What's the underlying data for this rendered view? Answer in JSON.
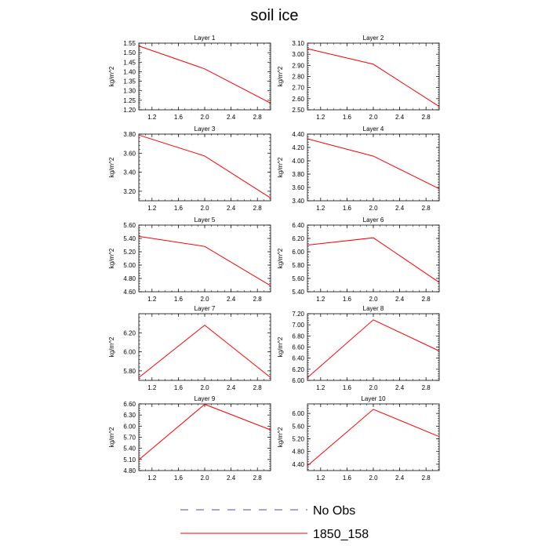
{
  "title": "soil ice",
  "legend": [
    {
      "label": "No Obs",
      "color": "#4b4bb4",
      "dash": true
    },
    {
      "label": "1850_158",
      "color": "#ff0000",
      "dash": false
    }
  ],
  "chart_data": [
    {
      "type": "line",
      "title": "Layer 1",
      "ylabel": "kg/m^2",
      "x": [
        1,
        2,
        3
      ],
      "xlim": [
        1,
        3
      ],
      "xticks": [
        "1.2",
        "1.6",
        "2.0",
        "2.4",
        "2.8"
      ],
      "ylim": [
        1.2,
        1.55
      ],
      "yticks": [
        "1.20",
        "1.25",
        "1.30",
        "1.35",
        "1.40",
        "1.45",
        "1.50",
        "1.55"
      ],
      "series": [
        {
          "name": "1850_158",
          "values": [
            1.535,
            1.415,
            1.235
          ]
        }
      ]
    },
    {
      "type": "line",
      "title": "Layer 2",
      "ylabel": "kg/m^2",
      "x": [
        1,
        2,
        3
      ],
      "xlim": [
        1,
        3
      ],
      "xticks": [
        "1.2",
        "1.6",
        "2.0",
        "2.4",
        "2.8"
      ],
      "ylim": [
        2.5,
        3.1
      ],
      "yticks": [
        "2.50",
        "2.60",
        "2.70",
        "2.80",
        "2.90",
        "3.00",
        "3.10"
      ],
      "series": [
        {
          "name": "1850_158",
          "values": [
            3.05,
            2.91,
            2.53
          ]
        }
      ]
    },
    {
      "type": "line",
      "title": "Layer 3",
      "ylabel": "kg/m^2",
      "x": [
        1,
        2,
        3
      ],
      "xlim": [
        1,
        3
      ],
      "xticks": [
        "1.2",
        "1.6",
        "2.0",
        "2.4",
        "2.8"
      ],
      "ylim": [
        3.1,
        3.8
      ],
      "yticks": [
        "3.20",
        "3.40",
        "3.60",
        "3.80"
      ],
      "series": [
        {
          "name": "1850_158",
          "values": [
            3.79,
            3.57,
            3.13
          ]
        }
      ]
    },
    {
      "type": "line",
      "title": "Layer 4",
      "ylabel": "kg/m^2",
      "x": [
        1,
        2,
        3
      ],
      "xlim": [
        1,
        3
      ],
      "xticks": [
        "1.2",
        "1.6",
        "2.0",
        "2.4",
        "2.8"
      ],
      "ylim": [
        3.4,
        4.4
      ],
      "yticks": [
        "3.40",
        "3.60",
        "3.80",
        "4.00",
        "4.20",
        "4.40"
      ],
      "series": [
        {
          "name": "1850_158",
          "values": [
            4.33,
            4.07,
            3.58
          ]
        }
      ]
    },
    {
      "type": "line",
      "title": "Layer 5",
      "ylabel": "kg/m^2",
      "x": [
        1,
        2,
        3
      ],
      "xlim": [
        1,
        3
      ],
      "xticks": [
        "1.2",
        "1.6",
        "2.0",
        "2.4",
        "2.8"
      ],
      "ylim": [
        4.6,
        5.6
      ],
      "yticks": [
        "4.60",
        "4.80",
        "5.00",
        "5.20",
        "5.40",
        "5.60"
      ],
      "series": [
        {
          "name": "1850_158",
          "values": [
            5.43,
            5.28,
            4.69
          ]
        }
      ]
    },
    {
      "type": "line",
      "title": "Layer 6",
      "ylabel": "kg/m^2",
      "x": [
        1,
        2,
        3
      ],
      "xlim": [
        1,
        3
      ],
      "xticks": [
        "1.2",
        "1.6",
        "2.0",
        "2.4",
        "2.8"
      ],
      "ylim": [
        5.4,
        6.4
      ],
      "yticks": [
        "5.40",
        "5.60",
        "5.80",
        "6.00",
        "6.20",
        "6.40"
      ],
      "series": [
        {
          "name": "1850_158",
          "values": [
            6.1,
            6.21,
            5.54
          ]
        }
      ]
    },
    {
      "type": "line",
      "title": "Layer 7",
      "ylabel": "kg/m^2",
      "x": [
        1,
        2,
        3
      ],
      "xlim": [
        1,
        3
      ],
      "xticks": [
        "1.2",
        "1.6",
        "2.0",
        "2.4",
        "2.8"
      ],
      "ylim": [
        5.7,
        6.4
      ],
      "yticks": [
        "5.80",
        "6.00",
        "6.20"
      ],
      "series": [
        {
          "name": "1850_158",
          "values": [
            5.73,
            6.28,
            5.73
          ]
        }
      ]
    },
    {
      "type": "line",
      "title": "Layer 8",
      "ylabel": "kg/m^2",
      "x": [
        1,
        2,
        3
      ],
      "xlim": [
        1,
        3
      ],
      "xticks": [
        "1.2",
        "1.6",
        "2.0",
        "2.4",
        "2.8"
      ],
      "ylim": [
        6.0,
        7.2
      ],
      "yticks": [
        "6.00",
        "6.20",
        "6.40",
        "6.60",
        "6.80",
        "7.00",
        "7.20"
      ],
      "series": [
        {
          "name": "1850_158",
          "values": [
            6.05,
            7.09,
            6.53
          ]
        }
      ]
    },
    {
      "type": "line",
      "title": "Layer 9",
      "ylabel": "kg/m^2",
      "x": [
        1,
        2,
        3
      ],
      "xlim": [
        1,
        3
      ],
      "xticks": [
        "1.2",
        "1.6",
        "2.0",
        "2.4",
        "2.8"
      ],
      "ylim": [
        4.8,
        6.6
      ],
      "yticks": [
        "4.80",
        "5.10",
        "5.40",
        "5.70",
        "6.00",
        "6.30",
        "6.60"
      ],
      "series": [
        {
          "name": "1850_158",
          "values": [
            5.09,
            6.59,
            5.9
          ]
        }
      ]
    },
    {
      "type": "line",
      "title": "Layer 10",
      "ylabel": "kg/m^2",
      "x": [
        1,
        2,
        3
      ],
      "xlim": [
        1,
        3
      ],
      "xticks": [
        "1.2",
        "1.6",
        "2.0",
        "2.4",
        "2.8"
      ],
      "ylim": [
        4.2,
        6.3
      ],
      "yticks": [
        "4.40",
        "4.80",
        "5.20",
        "5.60",
        "6.00"
      ],
      "series": [
        {
          "name": "1850_158",
          "values": [
            4.35,
            6.13,
            5.27
          ]
        }
      ]
    }
  ]
}
